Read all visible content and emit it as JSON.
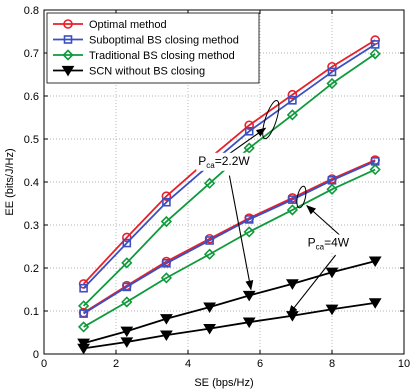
{
  "chart_data": {
    "type": "line",
    "xlabel": "SE (bps/Hz)",
    "ylabel": "EE (bits/J/Hz)",
    "xlim": [
      0,
      10
    ],
    "ylim": [
      0,
      0.8
    ],
    "xticks": [
      0,
      2,
      4,
      6,
      8,
      10
    ],
    "yticks": [
      0,
      0.1,
      0.2,
      0.3,
      0.4,
      0.5,
      0.6,
      0.7,
      0.8
    ],
    "grid": true,
    "legend_position": "top-left",
    "x": [
      1.1,
      2.3,
      3.4,
      4.6,
      5.7,
      6.9,
      8.0,
      9.2
    ],
    "series": [
      {
        "name": "Optimal method",
        "group": "Pca=2.2W",
        "color": "#e8202a",
        "marker": "circle",
        "values": [
          0.163,
          0.271,
          0.367,
          0.455,
          0.532,
          0.603,
          0.668,
          0.73
        ]
      },
      {
        "name": "Suboptimal BS closing method",
        "group": "Pca=2.2W",
        "color": "#3c4fc0",
        "marker": "square",
        "values": [
          0.153,
          0.258,
          0.353,
          0.44,
          0.518,
          0.59,
          0.656,
          0.72
        ]
      },
      {
        "name": "Traditional BS closing method",
        "group": "Pca=2.2W",
        "color": "#0f9a3c",
        "marker": "diamond",
        "values": [
          0.112,
          0.212,
          0.308,
          0.397,
          0.479,
          0.556,
          0.629,
          0.698
        ]
      },
      {
        "name": "SCN without BS closing",
        "group": "Pca=2.2W",
        "color": "#000000",
        "marker": "triangle-down",
        "values": [
          0.025,
          0.053,
          0.082,
          0.109,
          0.136,
          0.163,
          0.19,
          0.216
        ]
      },
      {
        "name": "Optimal method",
        "group": "Pca=4W",
        "color": "#e8202a",
        "marker": "circle",
        "values": [
          0.096,
          0.159,
          0.215,
          0.268,
          0.316,
          0.363,
          0.407,
          0.451
        ]
      },
      {
        "name": "Suboptimal BS closing method",
        "group": "Pca=4W",
        "color": "#3c4fc0",
        "marker": "square",
        "values": [
          0.094,
          0.156,
          0.211,
          0.264,
          0.313,
          0.359,
          0.404,
          0.448
        ]
      },
      {
        "name": "Traditional BS closing method",
        "group": "Pca=4W",
        "color": "#0f9a3c",
        "marker": "diamond",
        "values": [
          0.063,
          0.121,
          0.177,
          0.232,
          0.284,
          0.335,
          0.383,
          0.429
        ]
      },
      {
        "name": "SCN without BS closing",
        "group": "Pca=4W",
        "color": "#000000",
        "marker": "triangle-down",
        "values": [
          0.013,
          0.028,
          0.044,
          0.059,
          0.074,
          0.089,
          0.104,
          0.119
        ]
      }
    ],
    "annotations": [
      {
        "text": "P",
        "subscript": "ca",
        "suffix": "=2.2W",
        "at": [
          5.0,
          0.44
        ]
      },
      {
        "text": "P",
        "subscript": "ca",
        "suffix": "=4W",
        "at": [
          7.9,
          0.25
        ]
      }
    ]
  }
}
